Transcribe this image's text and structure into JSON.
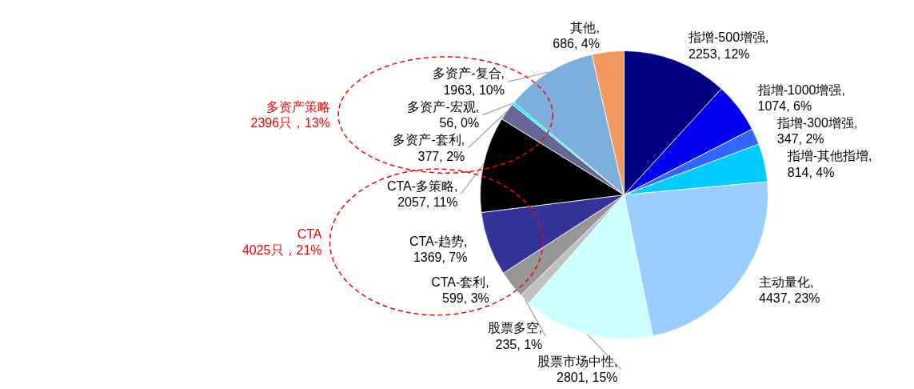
{
  "chart_data": {
    "type": "pie",
    "categories": [
      "指增-500增强",
      "指增-1000增强",
      "指增-300增强",
      "指增-其他指增",
      "主动量化",
      "股票市场中性",
      "股票多空",
      "CTA-套利",
      "CTA-趋势",
      "CTA-多策略",
      "多资产-套利",
      "多资产-宏观",
      "多资产-复合",
      "其他"
    ],
    "values": [
      2253,
      1074,
      347,
      814,
      4437,
      2801,
      235,
      599,
      1369,
      2057,
      377,
      56,
      1963,
      686
    ],
    "colors": [
      "#000080",
      "#0000ee",
      "#3366ff",
      "#00ccff",
      "#99ccff",
      "#ccffff",
      "#c0c0c0",
      "#969696",
      "#333399",
      "#000000",
      "#666699",
      "#00ffff",
      "#7eaedc",
      "#f0985e"
    ],
    "value_labels": [
      ", 2253, 12%",
      ", 1074, 6%",
      ", 347, 2%",
      ", 814, 4%",
      ", 4437, 23%",
      ", 2801, 15%",
      ", 235, 1%",
      ", 599, 3%",
      ", 1369, 7%",
      ", 2057, 11%",
      ", 377, 2%",
      ", 56, 0%",
      ", 1963, 10%",
      ", 686, 4%"
    ],
    "annotations": [
      "多资产策略\n2396只，13%",
      "CTA\n4025只，21%"
    ]
  }
}
